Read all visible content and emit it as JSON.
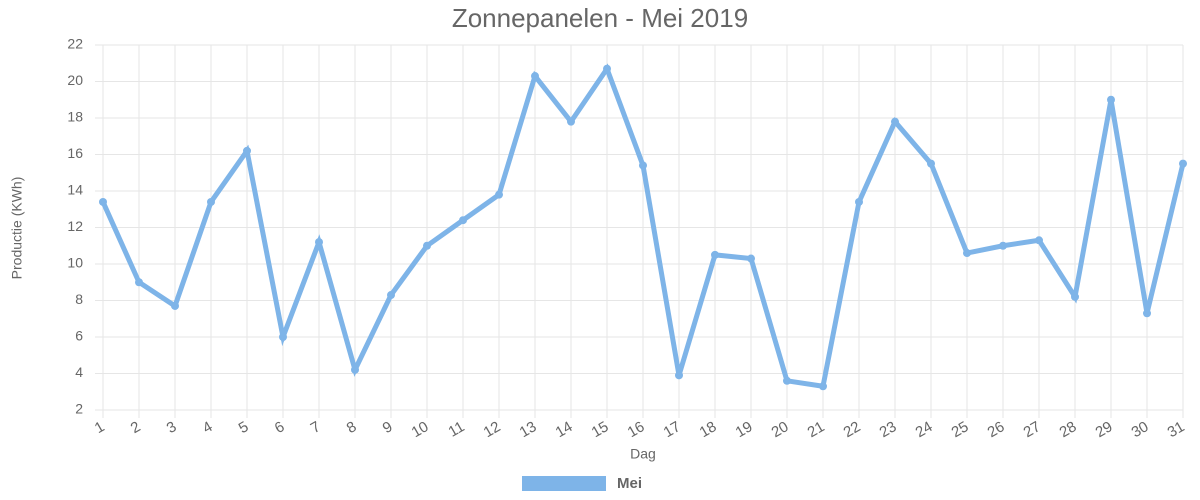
{
  "chart_data": {
    "type": "line",
    "title": "Zonnepanelen - Mei 2019",
    "x_label": "Dag",
    "y_label": "Productie (KWh)",
    "categories": [
      "1",
      "2",
      "3",
      "4",
      "5",
      "6",
      "7",
      "8",
      "9",
      "10",
      "11",
      "12",
      "13",
      "14",
      "15",
      "16",
      "17",
      "18",
      "19",
      "20",
      "21",
      "22",
      "23",
      "24",
      "25",
      "26",
      "27",
      "28",
      "29",
      "30",
      "31"
    ],
    "series": [
      {
        "name": "Mei",
        "color": "#7eb4e8",
        "values": [
          13.4,
          9.0,
          7.7,
          13.4,
          16.2,
          6.0,
          11.2,
          4.2,
          8.3,
          11.0,
          12.4,
          13.8,
          20.3,
          17.8,
          20.7,
          15.4,
          3.9,
          10.5,
          10.3,
          3.6,
          3.3,
          13.4,
          17.8,
          15.5,
          10.6,
          11.0,
          11.3,
          8.2,
          19.0,
          7.3,
          15.5
        ]
      }
    ],
    "ylim": [
      2,
      22
    ],
    "yticks": [
      2,
      4,
      6,
      8,
      10,
      12,
      14,
      16,
      18,
      20,
      22
    ],
    "grid": true,
    "legend": "bottom"
  }
}
